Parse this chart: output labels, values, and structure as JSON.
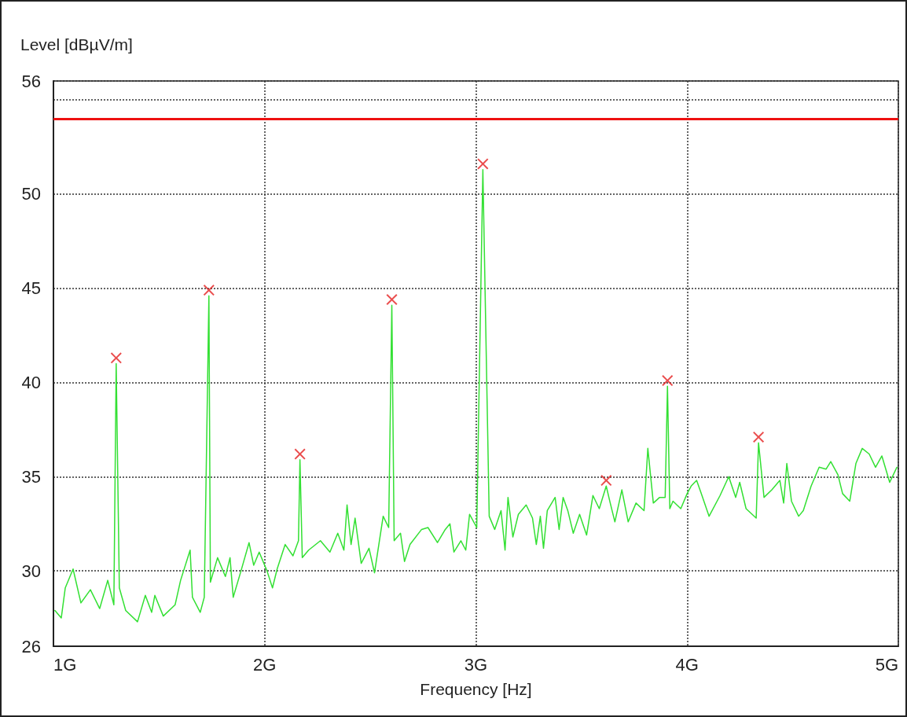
{
  "chart_data": {
    "type": "line",
    "xlabel": "Frequency [Hz]",
    "ylabel": "Level [dBµV/m]",
    "xlim": [
      1,
      5
    ],
    "xticks": [
      {
        "value": 1,
        "label": "1G"
      },
      {
        "value": 2,
        "label": "2G"
      },
      {
        "value": 3,
        "label": "3G"
      },
      {
        "value": 4,
        "label": "4G"
      },
      {
        "value": 5,
        "label": "5G"
      }
    ],
    "ylim": [
      26,
      56
    ],
    "yticks": [
      26,
      30,
      35,
      40,
      45,
      50,
      {
        "value": 55,
        "label": null
      },
      56
    ],
    "grid": true,
    "line_style": "solid",
    "ref_lines": [
      {
        "axis": "y",
        "value": 54,
        "label": null,
        "color": "#ee1111"
      }
    ],
    "series": [
      {
        "color": "#33e033",
        "marker": "none",
        "x": [
          1.007,
          1.037,
          1.056,
          1.093,
          1.13,
          1.175,
          1.219,
          1.257,
          1.286,
          1.297,
          1.312,
          1.342,
          1.398,
          1.435,
          1.465,
          1.48,
          1.52,
          1.576,
          1.602,
          1.647,
          1.658,
          1.695,
          1.714,
          1.736,
          1.743,
          1.777,
          1.814,
          1.836,
          1.851,
          1.888,
          1.926,
          1.948,
          1.974,
          2.011,
          2.037,
          2.059,
          2.097,
          2.134,
          2.16,
          2.167,
          2.178,
          2.208,
          2.264,
          2.309,
          2.346,
          2.375,
          2.39,
          2.409,
          2.428,
          2.457,
          2.494,
          2.52,
          2.561,
          2.587,
          2.602,
          2.613,
          2.643,
          2.662,
          2.688,
          2.743,
          2.773,
          2.818,
          2.855,
          2.877,
          2.896,
          2.929,
          2.952,
          2.97,
          3.004,
          3.033,
          3.063,
          3.089,
          3.119,
          3.138,
          3.152,
          3.175,
          3.201,
          3.238,
          3.268,
          3.286,
          3.305,
          3.32,
          3.338,
          3.375,
          3.394,
          3.413,
          3.435,
          3.461,
          3.491,
          3.524,
          3.554,
          3.584,
          3.617,
          3.636,
          3.658,
          3.691,
          3.721,
          3.758,
          3.796,
          3.814,
          3.84,
          3.87,
          3.896,
          3.907,
          3.918,
          3.933,
          3.97,
          4.0,
          4.019,
          4.045,
          4.067,
          4.104,
          4.156,
          4.197,
          4.23,
          4.249,
          4.279,
          4.327,
          4.338,
          4.364,
          4.401,
          4.439,
          4.457,
          4.472,
          4.494,
          4.528,
          4.55,
          4.587,
          4.625,
          4.658,
          4.68,
          4.714,
          4.736,
          4.77,
          4.799,
          4.829,
          4.862,
          4.892,
          4.922,
          4.959,
          4.993
        ],
        "values": [
          27.9,
          27.5,
          29.1,
          30.1,
          28.3,
          29.0,
          28.0,
          29.5,
          28.2,
          41.0,
          29.1,
          27.9,
          27.3,
          28.7,
          27.8,
          28.7,
          27.6,
          28.2,
          29.5,
          31.1,
          28.6,
          27.8,
          28.6,
          44.6,
          29.4,
          30.7,
          29.7,
          30.7,
          28.6,
          30.0,
          31.5,
          30.3,
          31.0,
          30.0,
          29.1,
          30.1,
          31.4,
          30.8,
          31.6,
          35.9,
          30.7,
          31.1,
          31.6,
          31.0,
          32.0,
          31.1,
          33.5,
          31.4,
          32.8,
          30.4,
          31.2,
          29.9,
          32.9,
          32.3,
          44.1,
          31.6,
          32.0,
          30.5,
          31.4,
          32.2,
          32.3,
          31.5,
          32.2,
          32.5,
          31.0,
          31.6,
          31.1,
          33.0,
          32.3,
          51.3,
          32.9,
          32.2,
          33.2,
          31.1,
          33.9,
          31.8,
          33.0,
          33.5,
          32.8,
          31.4,
          32.9,
          31.2,
          33.2,
          33.9,
          32.2,
          33.9,
          33.2,
          32.0,
          33.0,
          31.9,
          34.0,
          33.3,
          34.5,
          33.6,
          32.6,
          34.3,
          32.6,
          33.6,
          33.2,
          36.5,
          33.6,
          33.9,
          33.9,
          39.8,
          33.3,
          33.7,
          33.3,
          34.1,
          34.5,
          34.8,
          34.1,
          32.9,
          34.0,
          35.0,
          33.9,
          34.7,
          33.3,
          32.8,
          36.8,
          33.9,
          34.3,
          34.8,
          33.6,
          35.7,
          33.7,
          32.9,
          33.2,
          34.5,
          35.5,
          35.4,
          35.8,
          35.1,
          34.1,
          33.7,
          35.7,
          36.5,
          36.2,
          35.5,
          36.1,
          34.7,
          35.5
        ]
      },
      {
        "type": "scatter",
        "color": "#e52020",
        "marker": "cross",
        "x": [
          1.297,
          1.736,
          2.167,
          2.602,
          3.033,
          3.617,
          3.907,
          4.338
        ],
        "values": [
          41.3,
          44.9,
          36.2,
          44.4,
          51.6,
          34.8,
          40.1,
          37.1
        ]
      }
    ]
  }
}
